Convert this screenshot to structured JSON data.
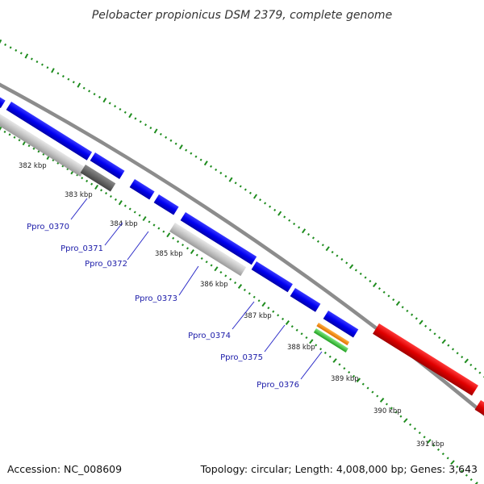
{
  "title": "Pelobacter propionicus DSM 2379, complete genome",
  "footer": {
    "accession": "Accession: NC_008609",
    "stats": "Topology: circular; Length: 4,008,000 bp; Genes: 3,643"
  },
  "kbp_labels": [
    "382 kbp",
    "383 kbp",
    "384 kbp",
    "385 kbp",
    "386 kbp",
    "387 kbp",
    "388 kbp",
    "389 kbp",
    "390 kbp",
    "391 kbp"
  ],
  "gene_labels": [
    "Ppro_0370",
    "Ppro_0371",
    "Ppro_0372",
    "Ppro_0373",
    "Ppro_0374",
    "Ppro_0375",
    "Ppro_0376"
  ],
  "colors": {
    "backbone": "#8c8c8c",
    "cds": "#0000ee",
    "pseudo_light": "#c8c8c8",
    "pseudo_dark": "#6e6e6e",
    "rrna": "#e00000",
    "orange": "#ff8c00",
    "green": "#3cc83c",
    "ticks": "#1e8c1e",
    "label_line": "#2a2ac8"
  }
}
